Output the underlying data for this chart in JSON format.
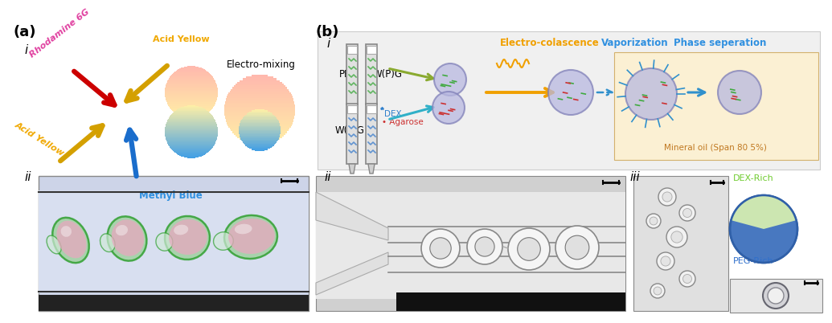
{
  "panel_a_label": "(a)",
  "panel_b_label": "(b)",
  "panel_ai_label": "i",
  "panel_aii_label": "ii",
  "panel_bi_label": "i",
  "panel_bii_label": "ii",
  "panel_biii_label": "iii",
  "rhodamine_text": "Rhodamine 6G",
  "acid_yellow_top": "Acid Yellow",
  "acid_yellow_bottom": "Acid Yellow",
  "methyl_blue_text": "Methyl Blue",
  "electromixing_text": "Electro-mixing",
  "peg_text": "PEG",
  "wpg_top_text": "W(P)G",
  "wpg_bottom_text": "W(P)G",
  "dex_text": "DEX",
  "agarose_text": "Agarose",
  "electro_coalescence_text": "Electro-colascence",
  "vaporization_text": "Vaporization",
  "phase_sep_text": "Phase seperation",
  "mineral_oil_text": "Mineral oil (Span 80 5%)",
  "dex_rich_text": "DEX-Rich",
  "peg_rich_text": "PEG-Rich",
  "bg_color": "#ffffff",
  "bi_bg_color": "#f0f0f0",
  "orange_box_color": "#fdf0d0",
  "rhodamine_color": "#e040a0",
  "acid_yellow_color": "#f0a800",
  "methyl_blue_color": "#3090e0",
  "dex_rich_color": "#70cc30",
  "peg_rich_color": "#3070cc",
  "electro_text_color": "#f0a000",
  "vapor_text_color": "#3090e0",
  "phase_text_color": "#3090e0",
  "mineral_text_color": "#c07820"
}
